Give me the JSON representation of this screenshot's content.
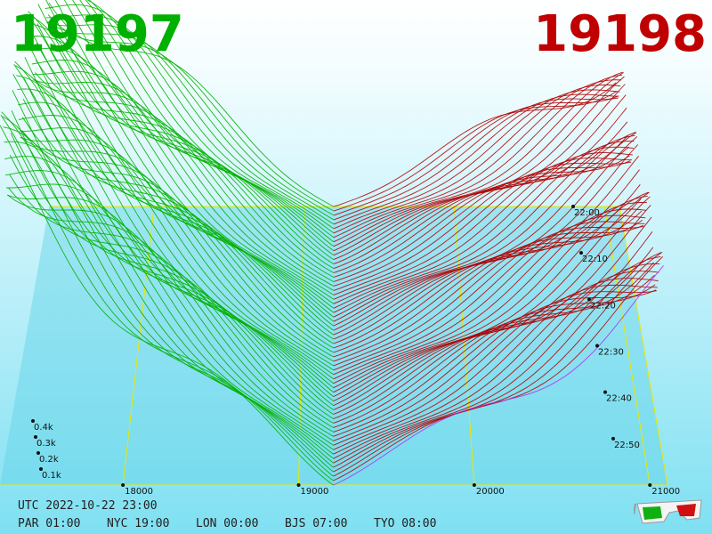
{
  "header": {
    "left_price": "19197",
    "right_price": "19198",
    "left_color": "#00b000",
    "right_color": "#c00000"
  },
  "chart_data": {
    "type": "area",
    "series": [
      {
        "side": "bid",
        "color": "#00b000"
      },
      {
        "side": "ask",
        "color": "#b00000"
      }
    ],
    "x_ticks": [
      "18000",
      "19000",
      "20000",
      "21000"
    ],
    "x_tick_values": [
      18000,
      19000,
      20000,
      21000
    ],
    "xlim": [
      17300,
      21100
    ],
    "mid_price": 19197.5,
    "y_ticks": [
      "0.1k",
      "0.2k",
      "0.3k",
      "0.4k"
    ],
    "y_tick_values": [
      100,
      200,
      300,
      400
    ],
    "time_ticks": [
      "22:00",
      "22:10",
      "22:20",
      "22:30",
      "22:40",
      "22:50"
    ],
    "layer_count": 64,
    "grid": true
  },
  "footer": {
    "utc": "UTC 2022-10-22 23:00",
    "clocks": [
      "PAR 01:00",
      "NYC 19:00",
      "LON 00:00",
      "BJS 07:00",
      "TYO 08:00"
    ]
  },
  "icons": {
    "glasses": "3d-glasses-icon"
  }
}
